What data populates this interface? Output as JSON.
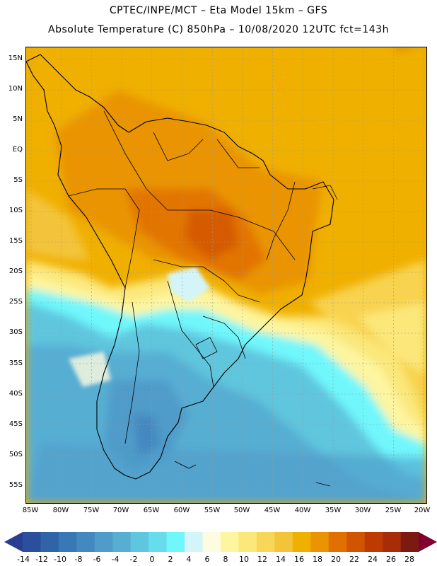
{
  "titles": {
    "line1": "CPTEC/INPE/MCT –  Eta Model 15km – GFS",
    "line2": "Absolute Temperature (C) 850hPa – 10/08/2020 12UTC fct=143h"
  },
  "map": {
    "region": "South America",
    "lat_labels": [
      "15N",
      "10N",
      "5N",
      "EQ",
      "5S",
      "10S",
      "15S",
      "20S",
      "25S",
      "30S",
      "35S",
      "40S",
      "45S",
      "50S",
      "55S"
    ],
    "lon_labels": [
      "85W",
      "80W",
      "75W",
      "70W",
      "65W",
      "60W",
      "55W",
      "50W",
      "45W",
      "40W",
      "35W",
      "30W",
      "25W",
      "20W"
    ]
  },
  "colorbar": {
    "labels": [
      "-14",
      "-12",
      "-10",
      "-8",
      "-6",
      "-4",
      "-2",
      "0",
      "2",
      "4",
      "6",
      "8",
      "10",
      "12",
      "14",
      "16",
      "18",
      "20",
      "22",
      "24",
      "26",
      "28"
    ],
    "colors": [
      "#2b4f9c",
      "#3063a8",
      "#3a77b6",
      "#4488c0",
      "#4f9bc9",
      "#57aed3",
      "#5ec6de",
      "#66dcec",
      "#6ff7fc",
      "#d3f5fa",
      "#fffbe0",
      "#fdf5a0",
      "#fbe77a",
      "#f8d758",
      "#f3c43a",
      "#f0b000",
      "#e99400",
      "#e17000",
      "#d25400",
      "#bf3a00",
      "#a82c08",
      "#7d1a10"
    ],
    "arrow_low_color": "#2a3d8f",
    "arrow_high_color": "#800030"
  }
}
